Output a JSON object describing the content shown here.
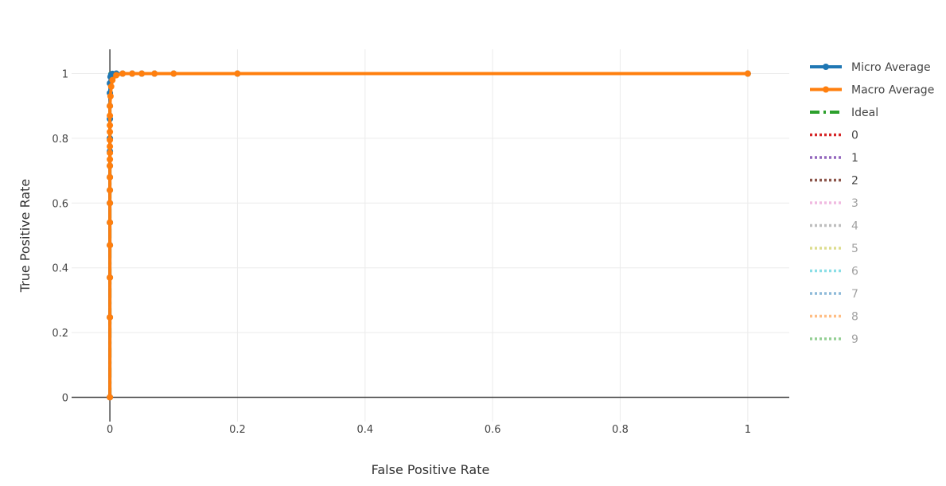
{
  "chart_data": {
    "type": "line",
    "title": "",
    "xlabel": "False Positive Rate",
    "ylabel": "True Positive Rate",
    "xlim": [
      -0.06,
      1.065
    ],
    "ylim": [
      -0.075,
      1.075
    ],
    "x_ticks": [
      0,
      0.2,
      0.4,
      0.6,
      0.8,
      1
    ],
    "x_tick_labels": [
      "0",
      "0.2",
      "0.4",
      "0.6",
      "0.8",
      "1"
    ],
    "y_ticks": [
      0,
      0.2,
      0.4,
      0.6,
      0.8,
      1
    ],
    "y_tick_labels": [
      "0",
      "0.2",
      "0.4",
      "0.6",
      "0.8",
      "1"
    ],
    "grid": true,
    "legend_position": "right",
    "series": [
      {
        "name": "Micro Average",
        "color": "#1f77b4",
        "style": "solid-markers",
        "visible": true,
        "x": [
          0,
          0,
          0,
          0,
          0,
          0,
          0,
          0,
          0,
          0,
          0,
          0,
          0,
          0,
          0,
          0.001,
          0.002,
          0.004,
          0.01,
          0.02,
          0.035,
          0.05,
          0.07,
          0.1,
          0.2,
          1
        ],
        "y": [
          0,
          0.247,
          0.37,
          0.47,
          0.54,
          0.6,
          0.64,
          0.68,
          0.715,
          0.76,
          0.8,
          0.86,
          0.9,
          0.94,
          0.97,
          0.99,
          0.996,
          0.999,
          1,
          1,
          1,
          1,
          1,
          1,
          1,
          1
        ]
      },
      {
        "name": "Macro Average",
        "color": "#ff7f0e",
        "style": "solid-markers",
        "visible": true,
        "x": [
          0,
          0,
          0,
          0,
          0,
          0,
          0,
          0,
          0,
          0,
          0,
          0,
          0,
          0,
          0,
          0,
          0,
          0.001,
          0.002,
          0.004,
          0.01,
          0.02,
          0.035,
          0.05,
          0.07,
          0.1,
          0.2,
          1
        ],
        "y": [
          0,
          0.247,
          0.37,
          0.47,
          0.54,
          0.6,
          0.64,
          0.68,
          0.715,
          0.735,
          0.755,
          0.775,
          0.795,
          0.82,
          0.84,
          0.87,
          0.9,
          0.93,
          0.96,
          0.98,
          0.995,
          1,
          1,
          1,
          1,
          1,
          1,
          1
        ]
      },
      {
        "name": "Ideal",
        "color": "#2ca02c",
        "style": "dashdot",
        "visible": true,
        "x": [
          0,
          0,
          1
        ],
        "y": [
          0,
          1,
          1
        ]
      },
      {
        "name": "0",
        "color": "#d62728",
        "style": "dot",
        "visible": true,
        "x": [
          0,
          0,
          0.002,
          1
        ],
        "y": [
          0,
          0.99,
          1,
          1
        ]
      },
      {
        "name": "1",
        "color": "#9467bd",
        "style": "dot",
        "visible": true,
        "x": [
          0,
          0,
          0.003,
          1
        ],
        "y": [
          0,
          0.985,
          1,
          1
        ]
      },
      {
        "name": "2",
        "color": "#8c564b",
        "style": "dot",
        "visible": true,
        "x": [
          0,
          0,
          0.004,
          1
        ],
        "y": [
          0,
          0.98,
          1,
          1
        ]
      },
      {
        "name": "3",
        "color": "#e377c2",
        "style": "dot",
        "visible": false
      },
      {
        "name": "4",
        "color": "#7f7f7f",
        "style": "dot",
        "visible": false
      },
      {
        "name": "5",
        "color": "#bcbd22",
        "style": "dot",
        "visible": false
      },
      {
        "name": "6",
        "color": "#17becf",
        "style": "dot",
        "visible": false
      },
      {
        "name": "7",
        "color": "#1f77b4",
        "style": "dot",
        "visible": false
      },
      {
        "name": "8",
        "color": "#ff7f0e",
        "style": "dot",
        "visible": false
      },
      {
        "name": "9",
        "color": "#2ca02c",
        "style": "dot",
        "visible": false
      }
    ]
  }
}
